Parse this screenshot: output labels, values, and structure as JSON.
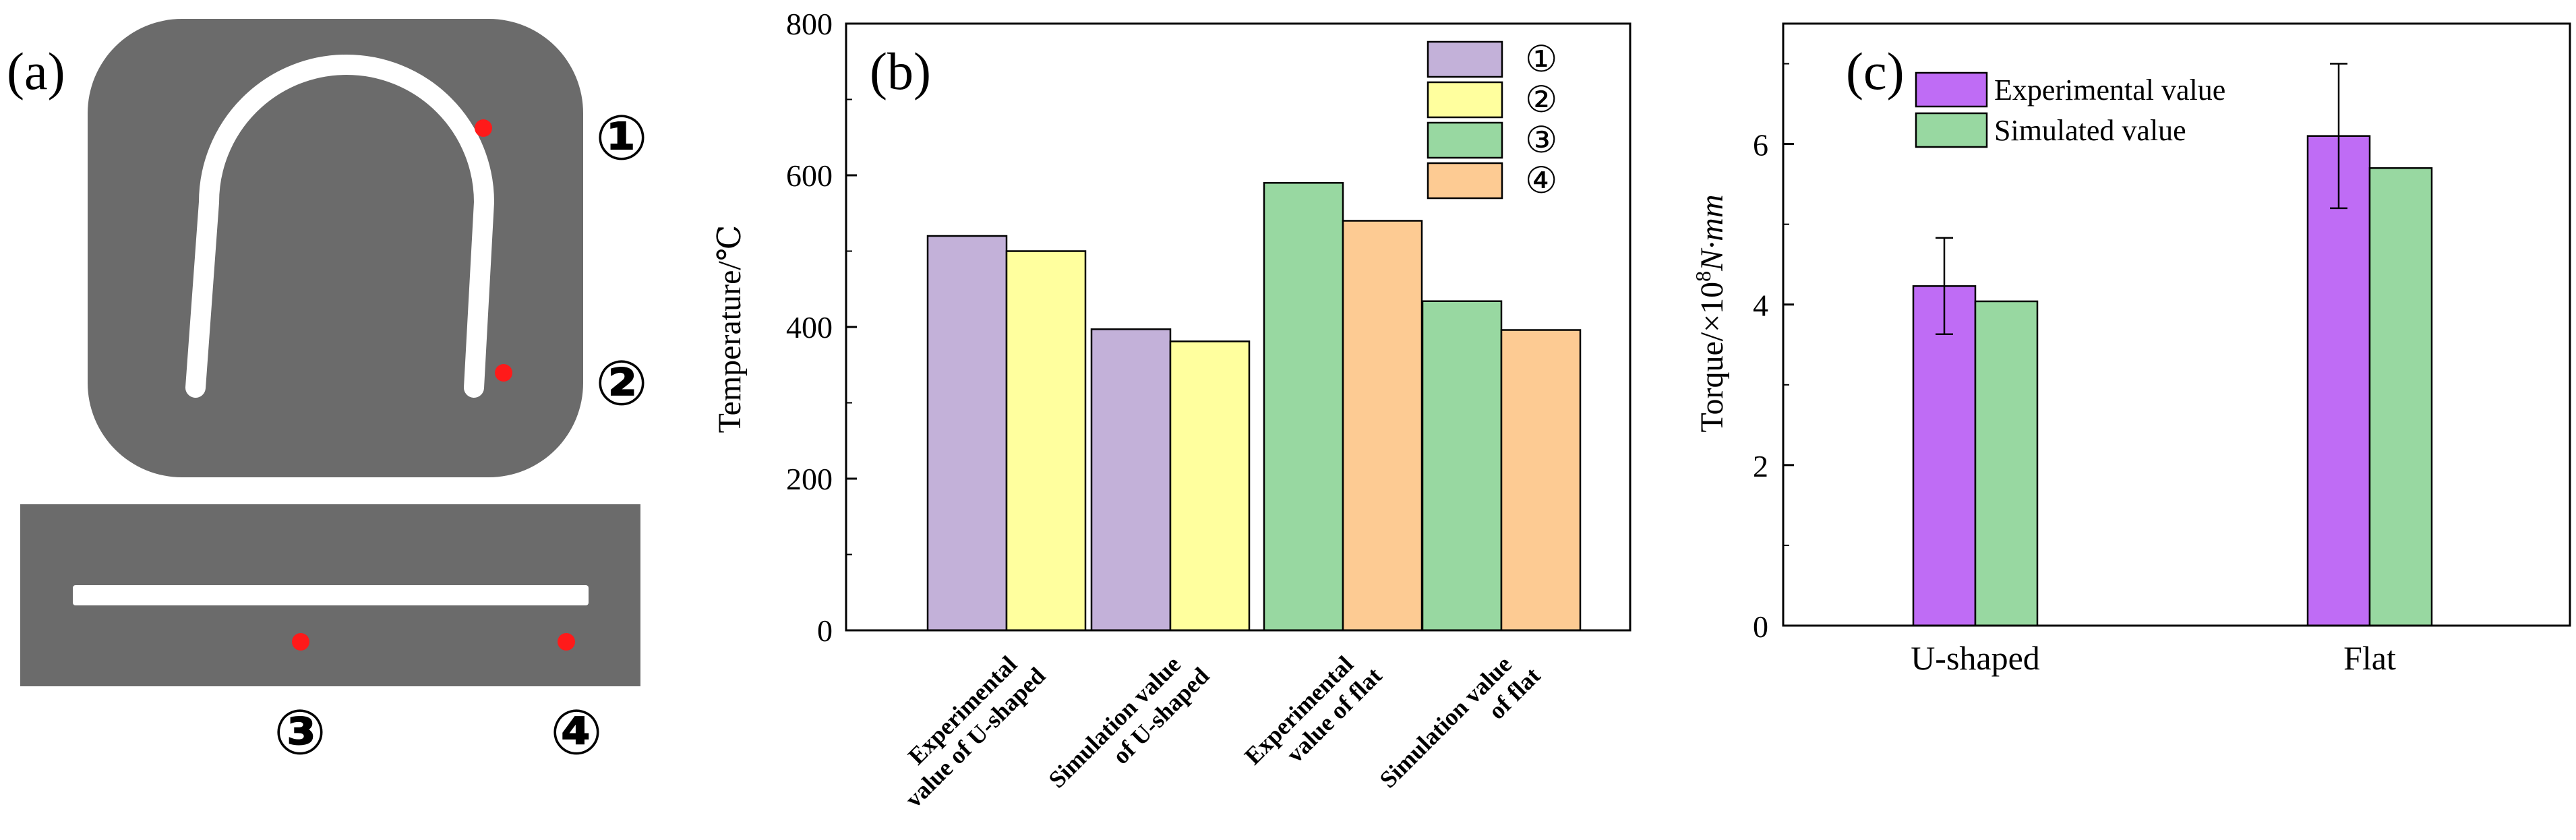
{
  "panel_a": {
    "label": "(a)",
    "markers": [
      "①",
      "②",
      "③",
      "④"
    ]
  },
  "chart_data": [
    {
      "panel": "(b)",
      "type": "bar",
      "ylabel": "Temperature/℃",
      "xlabel": "",
      "ylim": [
        0,
        800
      ],
      "yticks": [
        0,
        200,
        400,
        600,
        800
      ],
      "groups": [
        {
          "label_lines": [
            "Experimental",
            "value of U-shaped"
          ],
          "bars": [
            {
              "legend": "①",
              "value": 520
            },
            {
              "legend": "②",
              "value": 500
            }
          ]
        },
        {
          "label_lines": [
            "Simulation value",
            "of U-shaped"
          ],
          "bars": [
            {
              "legend": "①",
              "value": 397
            },
            {
              "legend": "②",
              "value": 381
            }
          ]
        },
        {
          "label_lines": [
            "Experimental",
            "value of flat"
          ],
          "bars": [
            {
              "legend": "③",
              "value": 590
            },
            {
              "legend": "④",
              "value": 540
            }
          ]
        },
        {
          "label_lines": [
            "Simulation value",
            "of flat"
          ],
          "bars": [
            {
              "legend": "③",
              "value": 434
            },
            {
              "legend": "④",
              "value": 396
            }
          ]
        }
      ],
      "legend": [
        {
          "name": "①",
          "color": "#c3b1d9"
        },
        {
          "name": "②",
          "color": "#ffff9e"
        },
        {
          "name": "③",
          "color": "#98d8a1"
        },
        {
          "name": "④",
          "color": "#fdcb93"
        }
      ]
    },
    {
      "panel": "(c)",
      "type": "bar",
      "ylabel_prefix": "Torque/×10",
      "ylabel_exp": "8",
      "ylabel_unit": "N·mm",
      "xlabel": "",
      "ylim": [
        0,
        7.5
      ],
      "yticks": [
        0,
        2,
        4,
        6
      ],
      "categories": [
        "U-shaped",
        "Flat"
      ],
      "series": [
        {
          "name": "Experimental value",
          "color": "#bf6cf5",
          "values": [
            4.23,
            6.1
          ],
          "errors": [
            0.6,
            0.9
          ]
        },
        {
          "name": "Simulated value",
          "color": "#98d8a1",
          "values": [
            4.04,
            5.7
          ]
        }
      ]
    }
  ]
}
